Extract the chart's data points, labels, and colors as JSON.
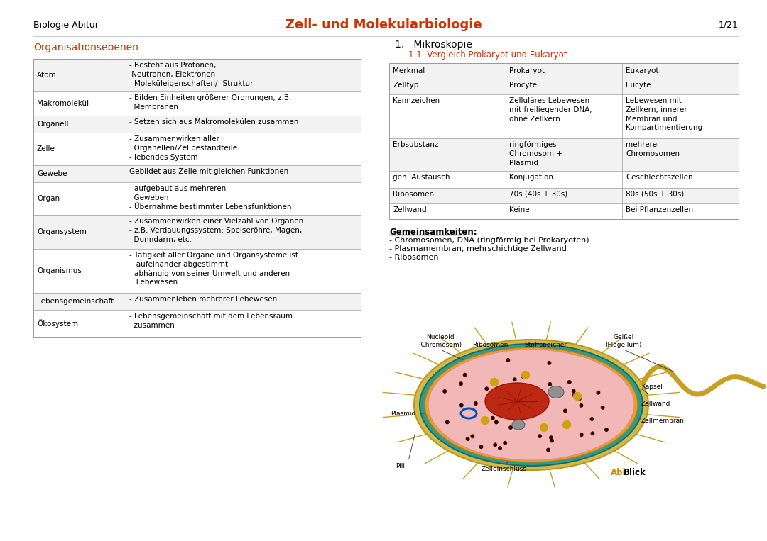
{
  "bg_color": "#ffffff",
  "header_left": "Biologie Abitur",
  "header_center": "Zell- und Molekularbiologie",
  "header_right": "1/21",
  "header_color": "#cc3300",
  "header_left_color": "#000000",
  "header_right_color": "#000000",
  "section_left_title": "Organisationsebenen",
  "section_right_title": "1.   Mikroskopie",
  "section_right_subtitle": "1.1. Vergleich Prokaryot und Eukaryot",
  "section_color": "#cc3300",
  "left_table": [
    [
      "Atom",
      "- Besteht aus Protonen,\n Neutronen, Elektronen\n- Moleküleigenschaften/ -Struktur"
    ],
    [
      "Makromolekül",
      "- Bilden Einheiten größerer Ordnungen, z.B.\n  Membranen"
    ],
    [
      "Organell",
      "- Setzen sich aus Makromolekülen zusammen"
    ],
    [
      "Zelle",
      "- Zusammenwirken aller\n  Organellen/Zellbestandteile\n- lebendes System"
    ],
    [
      "Gewebe",
      "Gebildet aus Zelle mit gleichen Funktionen"
    ],
    [
      "Organ",
      "- aufgebaut aus mehreren\n  Geweben\n- Übernahme bestimmter Lebensfunktionen"
    ],
    [
      "Organsystem",
      "- Zusammenwirken einer Vielzahl von Organen\n- z.B. Verdauungssystem: Speiseröhre, Magen,\n  Dunndarm, etc."
    ],
    [
      "Organismus",
      "- Tätigkeit aller Organe und Organsysteme ist\n   aufeinander abgestimmt\n- abhängig von seiner Umwelt und anderen\n   Lebewesen"
    ],
    [
      "Lebensgemeinschaft",
      "- Zusammenleben mehrerer Lebewesen"
    ],
    [
      "Ökosystem",
      "- Lebensgemeinschaft mit dem Lebensraum\n  zusammen"
    ]
  ],
  "right_table_headers": [
    "Merkmal",
    "Prokaryot",
    "Eukaryot"
  ],
  "right_table_rows": [
    [
      "Zelltyp",
      "Procyte",
      "Eucyte"
    ],
    [
      "Kennzeichen",
      "Zelluläres Lebewesen\nmit freiliegender DNA,\nohne Zellkern",
      "Lebewesen mit\nZellkern, innerer\nMembran und\nKompartimentierung"
    ],
    [
      "Erbsubstanz",
      "ringförmiges\nChromosom +\nPlasmid",
      "mehrere\nChromosomen"
    ],
    [
      "gen. Austausch",
      "Konjugation",
      "Geschlechtszellen"
    ],
    [
      "Ribosomen",
      "70s (40s + 30s)",
      "80s (50s + 30s)"
    ],
    [
      "Zellwand",
      "Keine",
      "Bei Pflanzenzellen"
    ]
  ],
  "gemeinsamkeiten_title": "Gemeinsamkeiten:",
  "gemeinsamkeiten_items": [
    "- Chromosomen, DNA (ringförmig bei Prokaryoten)",
    "- Plasmamembran, mehrschichtige Zellwand",
    "- Ribosomen"
  ],
  "table_border_color": "#999999",
  "table_alt_bg": "#f2f2f2",
  "font_size_body": 7.5,
  "abiblick_orange": "#dd8800",
  "abiblick_black": "#000000"
}
